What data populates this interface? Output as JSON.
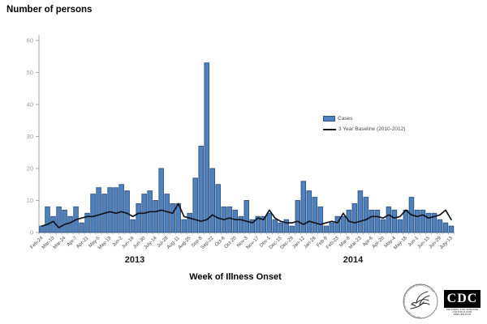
{
  "title": "Number of persons",
  "x_axis_title": "Week of Illness Onset",
  "year_labels": [
    "2013",
    "2014"
  ],
  "legend": {
    "cases_label": "Cases",
    "baseline_label": "3 Year Baseline (2010-2012)"
  },
  "logos": {
    "cdc_text": "CDC",
    "cdc_subtext": "CENTERS FOR DISEASE CONTROL AND PREVENTION",
    "hhs_ring_text": "DEPARTMENT OF HEALTH & HUMAN SERVICES • USA"
  },
  "colors": {
    "bar_fill": "#4f81bd",
    "bar_border": "#2f5380",
    "baseline_line": "#10151f",
    "y_tick_text": "#9c9c9c",
    "x_tick_text": "#404040",
    "axis_line": "#a6a6a6"
  },
  "chart_data": {
    "type": "bar",
    "title": "Number of persons",
    "xlabel": "Week of Illness Onset",
    "ylabel": "Number of persons",
    "ylim": [
      0,
      60
    ],
    "y_ticks": [
      0,
      10,
      20,
      30,
      40,
      50,
      60
    ],
    "grid": false,
    "legend_position": "center-right",
    "n_weeks": 73,
    "x_tick_label_interval": 2,
    "x_tick_labels": [
      "Feb-24",
      "Mar-10",
      "Mar-24",
      "Apr-7",
      "Apr-21",
      "May-5",
      "May-19",
      "Jun-2",
      "Jun-16",
      "Jun-30",
      "July-14",
      "Jul-28",
      "Aug-11",
      "Aug-25",
      "Sep-8",
      "Sep-22",
      "Oct-6",
      "Oct-20",
      "Nov-3",
      "Nov-17",
      "Dec-1",
      "Dec-15",
      "Dec-29",
      "Jan-12",
      "Jan-26",
      "Feb-9",
      "Feb-23",
      "Mar-9",
      "Mar-23",
      "Apr-6",
      "Apr-20",
      "May-4",
      "May-18",
      "Jun-1",
      "Jun-15",
      "Jun-29",
      "July-13"
    ],
    "series": [
      {
        "name": "Cases",
        "type": "bar",
        "color": "#4f81bd",
        "values": [
          2,
          8,
          5,
          8,
          7,
          5,
          8,
          3,
          6,
          12,
          14,
          12,
          14,
          14,
          15,
          13,
          4,
          9,
          12,
          13,
          10,
          20,
          12,
          9,
          9,
          4,
          6,
          17,
          27,
          53,
          20,
          15,
          8,
          8,
          7,
          5,
          10,
          4,
          5,
          5,
          6,
          4,
          3,
          4,
          2,
          10,
          16,
          13,
          11,
          8,
          2,
          3,
          5,
          5,
          7,
          9,
          13,
          11,
          7,
          7,
          4,
          8,
          7,
          4,
          7,
          11,
          7,
          7,
          6,
          6,
          4,
          3,
          2
        ]
      },
      {
        "name": "3 Year Baseline (2010-2012)",
        "type": "line",
        "color": "#10151f",
        "values": [
          2,
          2.5,
          3.5,
          1.5,
          2.5,
          3,
          4,
          4.5,
          5,
          5,
          5.5,
          6,
          6.5,
          6,
          6.5,
          6,
          5,
          6,
          6,
          6.5,
          6.5,
          7,
          6.5,
          6,
          9,
          5,
          4.5,
          4,
          3.5,
          4,
          5.5,
          4.5,
          4,
          4.5,
          4,
          4,
          3.5,
          3,
          4.5,
          4,
          7,
          4.5,
          3.5,
          3,
          3,
          3.5,
          2.5,
          3.5,
          3,
          2.5,
          3,
          3.5,
          3,
          6,
          3.5,
          3,
          3.5,
          4,
          5,
          5,
          4.5,
          5.5,
          4.5,
          5,
          7,
          5.5,
          5,
          5.5,
          4.5,
          5,
          5.5,
          7,
          4
        ]
      }
    ]
  }
}
